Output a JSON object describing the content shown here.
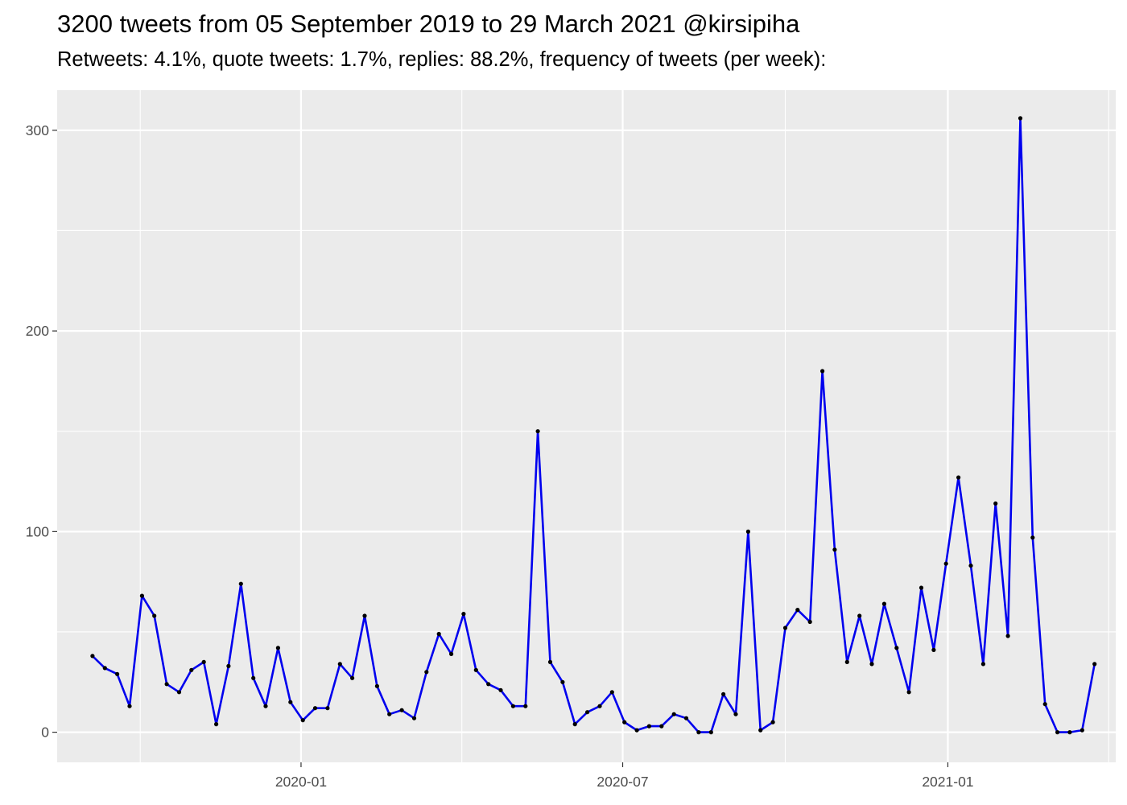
{
  "chart_data": {
    "type": "line",
    "title": "3200 tweets from 05 September 2019 to 29 March 2021 @kirsipiha",
    "subtitle": "Retweets: 4.1%, quote tweets: 1.7%, replies: 88.2%, frequency of tweets (per week):",
    "xlabel": "",
    "ylabel": "",
    "x_axis": {
      "type": "date",
      "range": [
        "2019-08-16",
        "2021-04-06"
      ],
      "ticks": [
        "2020-01-01",
        "2020-07-01",
        "2021-01-01"
      ],
      "tick_labels": [
        "2020-01",
        "2020-07",
        "2021-01"
      ]
    },
    "y_axis": {
      "range": [
        -15,
        320
      ],
      "ticks": [
        0,
        100,
        200,
        300
      ],
      "tick_labels": [
        "0",
        "100",
        "200",
        "300"
      ]
    },
    "grid": true,
    "legend": "none",
    "colors": {
      "line": "#0000ee",
      "point": "#000000",
      "panel": "#ebebeb",
      "grid": "#ffffff"
    },
    "series": [
      {
        "x": [
          "2019-09-05",
          "2019-09-12",
          "2019-09-19",
          "2019-09-26",
          "2019-10-03",
          "2019-10-10",
          "2019-10-17",
          "2019-10-24",
          "2019-10-31",
          "2019-11-07",
          "2019-11-14",
          "2019-11-21",
          "2019-11-28",
          "2019-12-05",
          "2019-12-12",
          "2019-12-19",
          "2019-12-26",
          "2020-01-02",
          "2020-01-09",
          "2020-01-16",
          "2020-01-23",
          "2020-01-30",
          "2020-02-06",
          "2020-02-13",
          "2020-02-20",
          "2020-02-27",
          "2020-03-05",
          "2020-03-12",
          "2020-03-19",
          "2020-03-26",
          "2020-04-02",
          "2020-04-09",
          "2020-04-16",
          "2020-04-23",
          "2020-04-30",
          "2020-05-07",
          "2020-05-14",
          "2020-05-21",
          "2020-05-28",
          "2020-06-04",
          "2020-06-11",
          "2020-06-18",
          "2020-06-25",
          "2020-07-02",
          "2020-07-09",
          "2020-07-16",
          "2020-07-23",
          "2020-07-30",
          "2020-08-06",
          "2020-08-13",
          "2020-08-20",
          "2020-08-27",
          "2020-09-03",
          "2020-09-10",
          "2020-09-17",
          "2020-09-24",
          "2020-10-01",
          "2020-10-08",
          "2020-10-15",
          "2020-10-22",
          "2020-10-29",
          "2020-11-05",
          "2020-11-12",
          "2020-11-19",
          "2020-11-26",
          "2020-12-03",
          "2020-12-10",
          "2020-12-17",
          "2020-12-24",
          "2020-12-31",
          "2021-01-07",
          "2021-01-14",
          "2021-01-21",
          "2021-01-28",
          "2021-02-04",
          "2021-02-11",
          "2021-02-18",
          "2021-02-25",
          "2021-03-04",
          "2021-03-11",
          "2021-03-18",
          "2021-03-25"
        ],
        "values": [
          38,
          32,
          29,
          13,
          68,
          58,
          24,
          20,
          31,
          35,
          4,
          33,
          74,
          27,
          13,
          42,
          15,
          6,
          12,
          12,
          34,
          27,
          58,
          23,
          9,
          11,
          7,
          30,
          49,
          39,
          59,
          31,
          24,
          21,
          13,
          13,
          150,
          35,
          25,
          4,
          10,
          13,
          20,
          5,
          1,
          3,
          3,
          9,
          7,
          0,
          0,
          19,
          9,
          100,
          1,
          5,
          52,
          61,
          55,
          180,
          91,
          35,
          58,
          34,
          64,
          42,
          20,
          72,
          41,
          84,
          127,
          83,
          34,
          114,
          48,
          306,
          97,
          14,
          0,
          0,
          1,
          34
        ]
      }
    ]
  }
}
